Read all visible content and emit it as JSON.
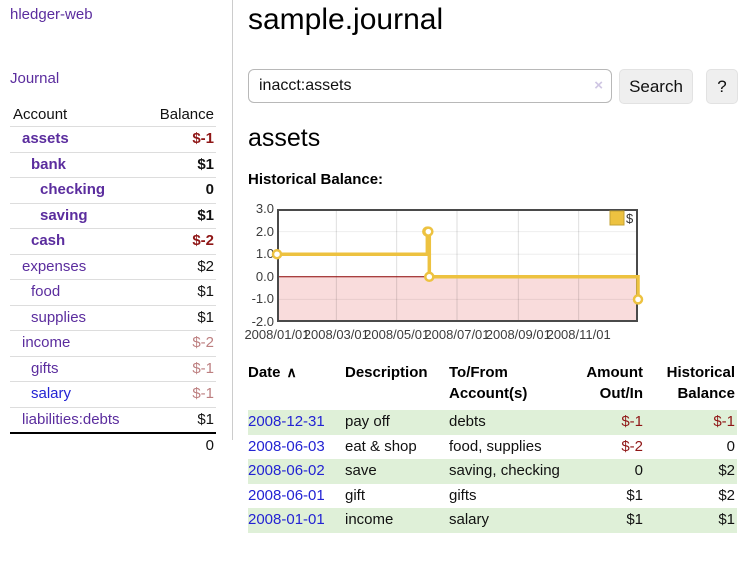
{
  "app": {
    "title": "hledger-web",
    "nav_journal": "Journal"
  },
  "colors": {
    "link_purple": "#5b2d9e",
    "link_blue": "#2323d3",
    "negative_bold": "#8f1616",
    "negative_dim": "#bd7f80",
    "row_green": "#dff0d8",
    "chart_line": "#edc240",
    "chart_zero_line": "#8b0000",
    "chart_negative_fill": "#f9dcdc"
  },
  "sidebar": {
    "headers": {
      "account": "Account",
      "balance": "Balance"
    },
    "accounts": [
      {
        "name": "assets",
        "balance": "$-1",
        "depth": 1,
        "bold": true,
        "name_color": "purple",
        "balance_style": "neg-bold"
      },
      {
        "name": "bank",
        "balance": "$1",
        "depth": 2,
        "bold": true,
        "name_color": "purple",
        "balance_style": "plain"
      },
      {
        "name": "checking",
        "balance": "0",
        "depth": 3,
        "bold": true,
        "name_color": "purple",
        "balance_style": "plain"
      },
      {
        "name": "saving",
        "balance": "$1",
        "depth": 3,
        "bold": true,
        "name_color": "purple",
        "balance_style": "plain"
      },
      {
        "name": "cash",
        "balance": "$-2",
        "depth": 2,
        "bold": true,
        "name_color": "purple",
        "balance_style": "neg-bold"
      },
      {
        "name": "expenses",
        "balance": "$2",
        "depth": 1,
        "bold": false,
        "name_color": "purple",
        "balance_style": "plain"
      },
      {
        "name": "food",
        "balance": "$1",
        "depth": 2,
        "bold": false,
        "name_color": "purple",
        "balance_style": "plain"
      },
      {
        "name": "supplies",
        "balance": "$1",
        "depth": 2,
        "bold": false,
        "name_color": "purple",
        "balance_style": "plain"
      },
      {
        "name": "income",
        "balance": "$-2",
        "depth": 1,
        "bold": false,
        "name_color": "purple",
        "balance_style": "neg-dim"
      },
      {
        "name": "gifts",
        "balance": "$-1",
        "depth": 2,
        "bold": false,
        "name_color": "purple",
        "balance_style": "neg-dim"
      },
      {
        "name": "salary",
        "balance": "$-1",
        "depth": 2,
        "bold": false,
        "name_color": "blue",
        "balance_style": "neg-dim"
      },
      {
        "name": "liabilities:debts",
        "balance": "$1",
        "depth": 1,
        "bold": false,
        "name_color": "purple",
        "balance_style": "plain"
      }
    ],
    "total": "0"
  },
  "header": {
    "title": "sample.journal"
  },
  "search": {
    "value": "inacct:assets",
    "clear_label": "×",
    "button": "Search",
    "help": "?"
  },
  "account_page": {
    "heading": "assets",
    "chart_label": "Historical Balance:"
  },
  "chart_data": {
    "type": "line",
    "title": "Historical Balance:",
    "legend": "$",
    "legend_position": "top-right",
    "grid": true,
    "xlim": [
      "2008-01-01",
      "2008-12-31"
    ],
    "ylim": [
      -2,
      3
    ],
    "y_ticks": [
      {
        "label": "3.0",
        "value": 3
      },
      {
        "label": "2.0",
        "value": 2
      },
      {
        "label": "1.0",
        "value": 1
      },
      {
        "label": "0.0",
        "value": 0
      },
      {
        "label": "-1.0",
        "value": -1
      },
      {
        "label": "-2.0",
        "value": -2
      }
    ],
    "x_ticks": [
      {
        "label": "2008/01/01",
        "date": "2008-01-01"
      },
      {
        "label": "2008/03/01",
        "date": "2008-03-01"
      },
      {
        "label": "2008/05/01",
        "date": "2008-05-01"
      },
      {
        "label": "2008/07/01",
        "date": "2008-07-01"
      },
      {
        "label": "2008/09/01",
        "date": "2008-09-01"
      },
      {
        "label": "2008/11/01",
        "date": "2008-11-01"
      }
    ],
    "series": [
      {
        "name": "$",
        "step": true,
        "points": [
          {
            "x": "2008-01-01",
            "y": 1
          },
          {
            "x": "2008-06-01",
            "y": 2
          },
          {
            "x": "2008-06-02",
            "y": 2
          },
          {
            "x": "2008-06-03",
            "y": 0
          },
          {
            "x": "2008-12-31",
            "y": -1
          }
        ]
      }
    ],
    "negative_region_shaded": true
  },
  "register": {
    "sort_icon": "∧",
    "headers": [
      {
        "lines": [
          "Date"
        ],
        "align": "left",
        "sort": "asc"
      },
      {
        "lines": [
          "Description"
        ],
        "align": "left"
      },
      {
        "lines": [
          "To/From",
          "Account(s)"
        ],
        "align": "left"
      },
      {
        "lines": [
          "Amount",
          "Out/In"
        ],
        "align": "right"
      },
      {
        "lines": [
          "Historical",
          "Balance"
        ],
        "align": "right"
      }
    ],
    "rows": [
      {
        "date": "2008-12-31",
        "description": "pay off",
        "accounts": "debts",
        "amount": "$-1",
        "balance": "$-1",
        "amount_neg": true,
        "balance_neg": true,
        "shade": true
      },
      {
        "date": "2008-06-03",
        "description": "eat & shop",
        "accounts": "food, supplies",
        "amount": "$-2",
        "balance": "0",
        "amount_neg": true,
        "balance_neg": false,
        "shade": false
      },
      {
        "date": "2008-06-02",
        "description": "save",
        "accounts": "saving, checking",
        "amount": "0",
        "balance": "$2",
        "amount_neg": false,
        "balance_neg": false,
        "shade": true
      },
      {
        "date": "2008-06-01",
        "description": "gift",
        "accounts": "gifts",
        "amount": "$1",
        "balance": "$2",
        "amount_neg": false,
        "balance_neg": false,
        "shade": false
      },
      {
        "date": "2008-01-01",
        "description": "income",
        "accounts": "salary",
        "amount": "$1",
        "balance": "$1",
        "amount_neg": false,
        "balance_neg": false,
        "shade": true
      }
    ]
  }
}
